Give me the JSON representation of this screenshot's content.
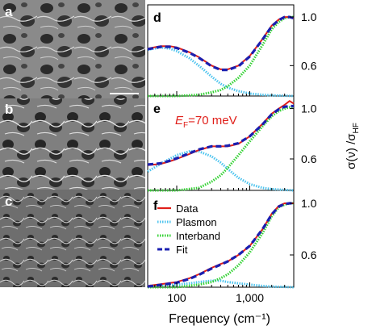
{
  "panels": {
    "a": {
      "letter": "a"
    },
    "b": {
      "letter": "b"
    },
    "c": {
      "letter": "c"
    },
    "d": {
      "letter": "d"
    },
    "e": {
      "letter": "e",
      "annotation_sym": "E",
      "annotation_sub": "F",
      "annotation_rest": "=70 meV"
    },
    "f": {
      "letter": "f"
    }
  },
  "axes": {
    "xlabel": "Frequency (cm⁻¹)",
    "ylabel_main": "σ(ν) /σ",
    "ylabel_sub": "HF",
    "xticks": [
      {
        "value": 100,
        "label": "100"
      },
      {
        "value": 1000,
        "label": "1,000"
      }
    ],
    "yticks": [
      {
        "value": 0.6,
        "label": "0.6"
      },
      {
        "value": 1.0,
        "label": "1.0"
      }
    ]
  },
  "legend": [
    {
      "label": "Data",
      "color": "#e0201b",
      "style": "solid"
    },
    {
      "label": "Plasmon",
      "color": "#4cc3ee",
      "style": "dotted"
    },
    {
      "label": "Interband",
      "color": "#32d232",
      "style": "dotted"
    },
    {
      "label": "Fit",
      "color": "#1a1fb0",
      "style": "dashed"
    }
  ],
  "colors": {
    "data": "#e0201b",
    "plasmon": "#4cc3ee",
    "interband": "#32d232",
    "fit": "#1a1fb0"
  },
  "chart_data": [
    {
      "panel": "d",
      "type": "line",
      "xscale": "log",
      "xlabel": "Frequency (cm⁻¹)",
      "ylabel": "σ(ν) /σHF",
      "xlim": [
        40,
        4000
      ],
      "ylim": [
        0.35,
        1.1
      ],
      "series": [
        {
          "name": "Data",
          "x": [
            40,
            60,
            80,
            100,
            150,
            200,
            300,
            400,
            500,
            700,
            1000,
            1500,
            2000,
            2500,
            3000,
            3500,
            4000
          ],
          "y": [
            0.74,
            0.76,
            0.76,
            0.75,
            0.71,
            0.67,
            0.6,
            0.57,
            0.57,
            0.6,
            0.68,
            0.82,
            0.93,
            0.98,
            1.0,
            1.0,
            0.99
          ]
        },
        {
          "name": "Plasmon",
          "x": [
            40,
            60,
            80,
            100,
            150,
            200,
            300,
            400,
            500,
            700,
            1000,
            1500,
            2000,
            4000
          ],
          "y": [
            0.73,
            0.75,
            0.74,
            0.72,
            0.66,
            0.6,
            0.51,
            0.45,
            0.42,
            0.39,
            0.37,
            0.36,
            0.355,
            0.35
          ]
        },
        {
          "name": "Interband",
          "x": [
            40,
            100,
            200,
            300,
            400,
            500,
            700,
            1000,
            1500,
            2000,
            2500,
            3000,
            3500,
            4000
          ],
          "y": [
            0.35,
            0.35,
            0.36,
            0.38,
            0.4,
            0.43,
            0.5,
            0.6,
            0.77,
            0.9,
            0.96,
            0.99,
            1.0,
            1.0
          ]
        },
        {
          "name": "Fit",
          "x": [
            40,
            60,
            80,
            100,
            150,
            200,
            300,
            400,
            500,
            700,
            1000,
            1500,
            2000,
            2500,
            3000,
            3500,
            4000
          ],
          "y": [
            0.735,
            0.755,
            0.755,
            0.745,
            0.705,
            0.665,
            0.595,
            0.565,
            0.565,
            0.595,
            0.675,
            0.815,
            0.925,
            0.975,
            1.0,
            1.0,
            0.99
          ]
        }
      ]
    },
    {
      "panel": "e",
      "type": "line",
      "xscale": "log",
      "xlabel": "Frequency (cm⁻¹)",
      "ylabel": "σ(ν) /σHF",
      "xlim": [
        40,
        4000
      ],
      "ylim": [
        0.35,
        1.1
      ],
      "series": [
        {
          "name": "Data",
          "x": [
            40,
            60,
            80,
            100,
            150,
            200,
            300,
            400,
            500,
            700,
            1000,
            1500,
            2000,
            2500,
            3000,
            3500,
            4000
          ],
          "y": [
            0.55,
            0.56,
            0.58,
            0.6,
            0.64,
            0.67,
            0.7,
            0.7,
            0.7,
            0.72,
            0.78,
            0.88,
            0.96,
            1.0,
            1.03,
            1.06,
            1.04
          ]
        },
        {
          "name": "Plasmon",
          "x": [
            40,
            60,
            80,
            100,
            150,
            200,
            300,
            400,
            500,
            700,
            1000,
            1500,
            2000,
            4000
          ],
          "y": [
            0.5,
            0.56,
            0.6,
            0.63,
            0.66,
            0.66,
            0.62,
            0.57,
            0.52,
            0.45,
            0.4,
            0.37,
            0.36,
            0.35
          ]
        },
        {
          "name": "Interband",
          "x": [
            40,
            100,
            200,
            300,
            400,
            500,
            700,
            1000,
            1500,
            2000,
            2500,
            3000,
            3500,
            4000
          ],
          "y": [
            0.35,
            0.35,
            0.37,
            0.42,
            0.47,
            0.53,
            0.63,
            0.74,
            0.86,
            0.94,
            0.98,
            1.0,
            1.01,
            1.01
          ]
        },
        {
          "name": "Fit",
          "x": [
            40,
            60,
            80,
            100,
            150,
            200,
            300,
            400,
            500,
            700,
            1000,
            1500,
            2000,
            2500,
            3000,
            3500,
            4000
          ],
          "y": [
            0.555,
            0.565,
            0.585,
            0.605,
            0.645,
            0.675,
            0.7,
            0.7,
            0.705,
            0.725,
            0.78,
            0.875,
            0.955,
            0.995,
            1.015,
            1.02,
            1.02
          ]
        }
      ]
    },
    {
      "panel": "f",
      "type": "line",
      "xscale": "log",
      "xlabel": "Frequency (cm⁻¹)",
      "ylabel": "σ(ν) /σHF",
      "xlim": [
        40,
        4000
      ],
      "ylim": [
        0.35,
        1.1
      ],
      "series": [
        {
          "name": "Data",
          "x": [
            40,
            100,
            150,
            200,
            300,
            400,
            500,
            700,
            1000,
            1500,
            2000,
            2500,
            3000,
            3500,
            4000
          ],
          "y": [
            0.36,
            0.39,
            0.42,
            0.45,
            0.5,
            0.53,
            0.55,
            0.6,
            0.67,
            0.8,
            0.92,
            0.98,
            1.0,
            1.0,
            1.0
          ]
        },
        {
          "name": "Plasmon",
          "x": [
            40,
            100,
            150,
            200,
            300,
            400,
            500,
            700,
            1000,
            1500,
            2000,
            4000
          ],
          "y": [
            0.36,
            0.37,
            0.38,
            0.39,
            0.4,
            0.4,
            0.39,
            0.38,
            0.37,
            0.36,
            0.355,
            0.35
          ]
        },
        {
          "name": "Interband",
          "x": [
            40,
            100,
            200,
            300,
            400,
            500,
            700,
            1000,
            1500,
            2000,
            2500,
            3000,
            3500,
            4000
          ],
          "y": [
            0.35,
            0.35,
            0.37,
            0.39,
            0.42,
            0.45,
            0.52,
            0.62,
            0.77,
            0.9,
            0.97,
            0.99,
            1.0,
            1.0
          ]
        },
        {
          "name": "Fit",
          "x": [
            40,
            100,
            150,
            200,
            300,
            400,
            500,
            700,
            1000,
            1500,
            2000,
            2500,
            3000,
            3500,
            4000
          ],
          "y": [
            0.355,
            0.385,
            0.415,
            0.445,
            0.495,
            0.525,
            0.55,
            0.6,
            0.67,
            0.8,
            0.915,
            0.975,
            0.995,
            1.0,
            1.0
          ]
        }
      ]
    }
  ]
}
